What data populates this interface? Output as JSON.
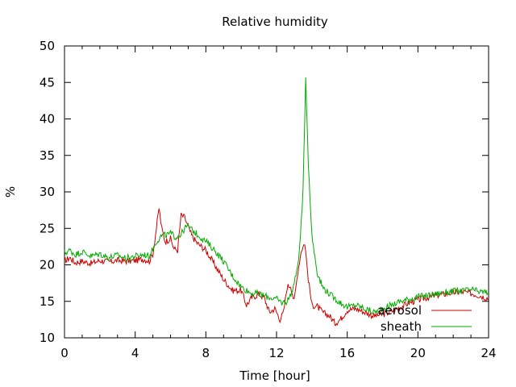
{
  "chart_data": {
    "type": "line",
    "title": "Relative humidity",
    "xlabel": "Time [hour]",
    "ylabel": "%",
    "xlim": [
      0,
      24
    ],
    "ylim": [
      10,
      50
    ],
    "xticks": [
      0,
      4,
      8,
      12,
      16,
      20,
      24
    ],
    "yticks": [
      10,
      15,
      20,
      25,
      30,
      35,
      40,
      45,
      50
    ],
    "grid": false,
    "legend_position": "bottom-right",
    "series": [
      {
        "name": "aerosol",
        "color": "#cc0000",
        "x": [
          0,
          0.3,
          0.6,
          1,
          1.5,
          2,
          2.5,
          3,
          3.5,
          4,
          4.5,
          4.8,
          5,
          5.2,
          5.35,
          5.5,
          5.7,
          6,
          6.2,
          6.4,
          6.6,
          6.8,
          7,
          7.2,
          7.5,
          8,
          8.5,
          9,
          9.5,
          10,
          10.3,
          10.6,
          11,
          11.3,
          11.6,
          11.9,
          12.2,
          12.4,
          12.6,
          12.8,
          13,
          13.2,
          13.4,
          13.6,
          13.8,
          14,
          14.3,
          14.6,
          15,
          15.3,
          15.6,
          16,
          16.5,
          17,
          17.5,
          18,
          18.5,
          19,
          19.5,
          20,
          20.5,
          21,
          21.5,
          22,
          22.5,
          23,
          23.5,
          24
        ],
        "values": [
          20.5,
          21,
          20.3,
          20.5,
          20.2,
          20.6,
          20.4,
          20.6,
          20.5,
          20.6,
          20.8,
          20.5,
          21.5,
          25,
          27.8,
          25,
          23.2,
          23.6,
          22.2,
          22.0,
          26.8,
          26.5,
          25.2,
          24,
          23,
          22,
          20,
          18,
          16.5,
          16.5,
          14.5,
          15.5,
          16,
          15.5,
          13.5,
          14,
          12.5,
          13.5,
          17,
          17.2,
          15,
          19,
          22,
          23,
          18,
          14.5,
          14.3,
          13.5,
          13,
          12,
          12.5,
          13.8,
          14,
          13.5,
          13,
          13.2,
          13.6,
          14.2,
          14.8,
          15.2,
          15.5,
          15.8,
          16,
          16.2,
          16.3,
          16.1,
          15.8,
          15.4
        ]
      },
      {
        "name": "sheath",
        "color": "#00aa00",
        "x": [
          0,
          0.3,
          0.6,
          1,
          1.5,
          2,
          2.5,
          3,
          3.5,
          4,
          4.5,
          4.8,
          5,
          5.2,
          5.5,
          5.8,
          6,
          6.3,
          6.6,
          6.8,
          7,
          7.2,
          7.5,
          8,
          8.5,
          9,
          9.5,
          10,
          10.5,
          11,
          11.5,
          12,
          12.3,
          12.6,
          12.9,
          13.1,
          13.3,
          13.5,
          13.65,
          13.8,
          14,
          14.3,
          14.6,
          15,
          15.5,
          16,
          16.5,
          17,
          17.5,
          18,
          18.5,
          19,
          19.5,
          20,
          20.5,
          21,
          21.5,
          22,
          22.5,
          23,
          23.5,
          24
        ],
        "values": [
          21.6,
          22,
          21.4,
          21.8,
          21.2,
          21.5,
          21.0,
          21.3,
          20.9,
          21.2,
          21.4,
          21.2,
          22.2,
          23.2,
          24.0,
          24.1,
          24.3,
          23.8,
          24.2,
          25.0,
          25.3,
          24.8,
          24.2,
          23.2,
          22.0,
          20.5,
          18.5,
          17.0,
          16.2,
          16.0,
          15.6,
          15.3,
          14.8,
          15.0,
          16.5,
          18.5,
          22.0,
          30.0,
          45.8,
          34.0,
          24.0,
          19.0,
          17.0,
          16.0,
          15.0,
          14.2,
          14.5,
          14.0,
          13.5,
          14.0,
          14.5,
          15.0,
          15.3,
          15.6,
          15.8,
          16.0,
          16.2,
          16.4,
          16.4,
          16.6,
          16.3,
          16.2
        ]
      }
    ]
  }
}
